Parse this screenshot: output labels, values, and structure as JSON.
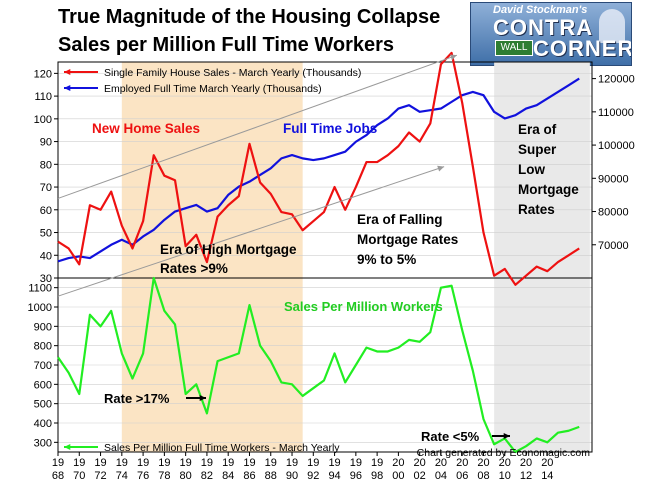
{
  "title_line1": "True Magnitude of the Housing Collapse",
  "title_line2": "Sales per Million Full Time Workers",
  "logo": {
    "byline": "David Stockman's",
    "word1": "CONTRA",
    "word2": "CORNER",
    "sign": "WALL"
  },
  "credit": "Chart generated by Economagic.com",
  "colors": {
    "sales": "#ee1111",
    "employed": "#1111dd",
    "per_million": "#22ee22",
    "shade_high": "#fbe4c4",
    "shade_low": "#e9e9e9"
  },
  "chart_data": [
    {
      "type": "line",
      "x": [
        1968,
        1969,
        1970,
        1971,
        1972,
        1973,
        1974,
        1975,
        1976,
        1977,
        1978,
        1979,
        1980,
        1981,
        1982,
        1983,
        1984,
        1985,
        1986,
        1987,
        1988,
        1989,
        1990,
        1991,
        1992,
        1993,
        1994,
        1995,
        1996,
        1997,
        1998,
        1999,
        2000,
        2001,
        2002,
        2003,
        2004,
        2005,
        2006,
        2007,
        2008,
        2009,
        2010,
        2011,
        2012,
        2013,
        2014,
        2015,
        2016,
        2017
      ],
      "ylim_left": [
        30,
        125
      ],
      "ylim_right": [
        60000,
        125000
      ],
      "yticks_left": [
        30,
        40,
        50,
        60,
        70,
        80,
        90,
        100,
        110,
        120
      ],
      "yticks_right": [
        70000,
        80000,
        90000,
        100000,
        110000,
        120000
      ],
      "series": [
        {
          "name": "Single Family House Sales - March Yearly (Thousands)",
          "axis": "left",
          "values": [
            46,
            43,
            36,
            62,
            60,
            68,
            53,
            43,
            55,
            84,
            75,
            73,
            44,
            49,
            37,
            57,
            62,
            66,
            89,
            72,
            67,
            59,
            58,
            51,
            55,
            59,
            70,
            60,
            70,
            81,
            81,
            84,
            88,
            94,
            90,
            98,
            124,
            129,
            107,
            79,
            50,
            31,
            34,
            27,
            31,
            35,
            33,
            37,
            40,
            43
          ]
        },
        {
          "name": "Employed Full Time March Yearly (Thousands)",
          "axis": "right",
          "values": [
            65000,
            66000,
            66500,
            66000,
            68000,
            70000,
            71500,
            70000,
            72500,
            74500,
            77500,
            80000,
            81000,
            82000,
            80000,
            81000,
            85000,
            87500,
            89000,
            91000,
            93000,
            96000,
            97000,
            96000,
            95500,
            96000,
            97000,
            98000,
            101000,
            103000,
            106000,
            108000,
            111000,
            112000,
            110000,
            110500,
            111000,
            113000,
            115000,
            116000,
            115000,
            110000,
            108000,
            109000,
            111000,
            112000,
            114000,
            116000,
            118000,
            120000
          ]
        }
      ],
      "annotations": [
        "New Home Sales",
        "Full Time Jobs",
        "Era of High Mortgage",
        "Rates >9%",
        "Era of Falling",
        "Mortgage Rates",
        "9% to 5%",
        "Era of",
        "Super",
        "Low",
        "Mortgage",
        "Rates"
      ]
    },
    {
      "type": "line",
      "x": [
        1968,
        1969,
        1970,
        1971,
        1972,
        1973,
        1974,
        1975,
        1976,
        1977,
        1978,
        1979,
        1980,
        1981,
        1982,
        1983,
        1984,
        1985,
        1986,
        1987,
        1988,
        1989,
        1990,
        1991,
        1992,
        1993,
        1994,
        1995,
        1996,
        1997,
        1998,
        1999,
        2000,
        2001,
        2002,
        2003,
        2004,
        2005,
        2006,
        2007,
        2008,
        2009,
        2010,
        2011,
        2012,
        2013,
        2014,
        2015,
        2016,
        2017
      ],
      "ylim": [
        250,
        1150
      ],
      "yticks": [
        300,
        400,
        500,
        600,
        700,
        800,
        900,
        1000,
        1100
      ],
      "series": [
        {
          "name": "Sales Per Million Full Time Workers - March Yearly",
          "values": [
            740,
            660,
            550,
            960,
            900,
            980,
            760,
            630,
            760,
            1150,
            980,
            910,
            550,
            600,
            450,
            720,
            740,
            760,
            1010,
            800,
            720,
            610,
            600,
            540,
            580,
            620,
            760,
            610,
            700,
            790,
            770,
            770,
            790,
            830,
            820,
            870,
            1100,
            1110,
            880,
            670,
            420,
            290,
            320,
            250,
            280,
            320,
            300,
            350,
            360,
            380
          ]
        }
      ],
      "annotations": [
        "Sales Per Million Workers",
        "Rate >17%",
        "Rate <5%"
      ]
    }
  ],
  "x_tick_labels": [
    {
      "year": 1968,
      "top": "19",
      "bottom": "68"
    },
    {
      "year": 1970,
      "top": "19",
      "bottom": "70"
    },
    {
      "year": 1972,
      "top": "19",
      "bottom": "72"
    },
    {
      "year": 1974,
      "top": "19",
      "bottom": "74"
    },
    {
      "year": 1976,
      "top": "19",
      "bottom": "76"
    },
    {
      "year": 1978,
      "top": "19",
      "bottom": "78"
    },
    {
      "year": 1980,
      "top": "19",
      "bottom": "80"
    },
    {
      "year": 1982,
      "top": "19",
      "bottom": "82"
    },
    {
      "year": 1984,
      "top": "19",
      "bottom": "84"
    },
    {
      "year": 1986,
      "top": "19",
      "bottom": "86"
    },
    {
      "year": 1988,
      "top": "19",
      "bottom": "88"
    },
    {
      "year": 1990,
      "top": "19",
      "bottom": "90"
    },
    {
      "year": 1992,
      "top": "19",
      "bottom": "92"
    },
    {
      "year": 1994,
      "top": "19",
      "bottom": "94"
    },
    {
      "year": 1996,
      "top": "19",
      "bottom": "96"
    },
    {
      "year": 1998,
      "top": "19",
      "bottom": "98"
    },
    {
      "year": 2000,
      "top": "20",
      "bottom": "00"
    },
    {
      "year": 2002,
      "top": "20",
      "bottom": "02"
    },
    {
      "year": 2004,
      "top": "20",
      "bottom": "04"
    },
    {
      "year": 2006,
      "top": "20",
      "bottom": "06"
    },
    {
      "year": 2008,
      "top": "20",
      "bottom": "08"
    },
    {
      "year": 2010,
      "top": "20",
      "bottom": "10"
    },
    {
      "year": 2012,
      "top": "20",
      "bottom": "12"
    },
    {
      "year": 2014,
      "top": "20",
      "bottom": "14"
    }
  ],
  "shaded_eras": [
    {
      "name": "high-mortgage-era",
      "from": 1974,
      "to": 1991
    },
    {
      "name": "super-low-era",
      "from": 2009,
      "to": 2018
    }
  ]
}
